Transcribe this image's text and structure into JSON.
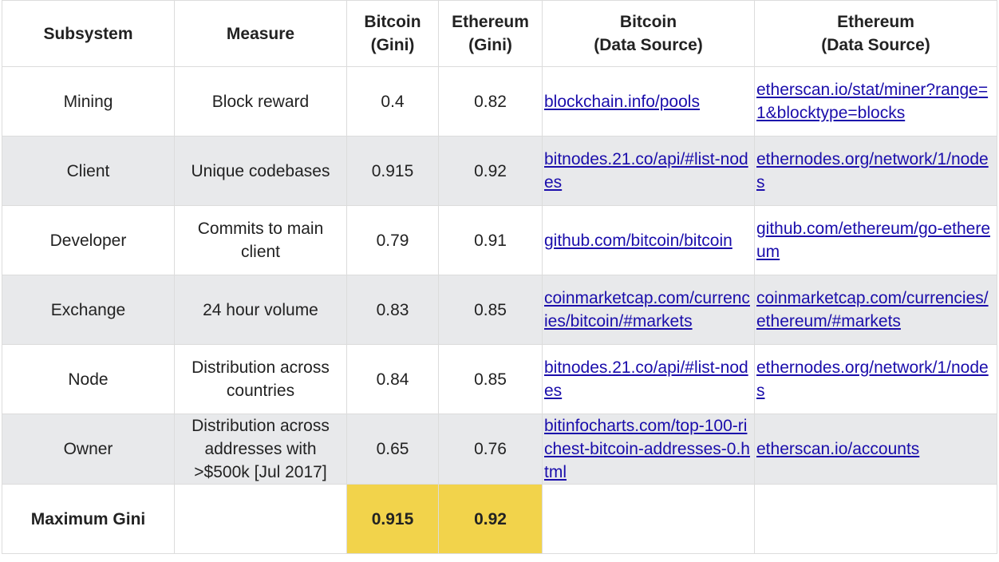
{
  "headers": {
    "subsystem": "Subsystem",
    "measure": "Measure",
    "btc_gini_1": "Bitcoin",
    "btc_gini_2": "(Gini)",
    "eth_gini_1": "Ethereum",
    "eth_gini_2": "(Gini)",
    "btc_src_1": "Bitcoin",
    "btc_src_2": "(Data Source)",
    "eth_src_1": "Ethereum",
    "eth_src_2": "(Data Source)"
  },
  "rows": [
    {
      "subsystem": "Mining",
      "measure": "Block reward",
      "btc": "0.4",
      "eth": "0.82",
      "btc_src": "blockchain.info/pools",
      "eth_src": "etherscan.io/stat/miner?range=1&blocktype=blocks"
    },
    {
      "subsystem": "Client",
      "measure": "Unique codebases",
      "btc": "0.915",
      "eth": "0.92",
      "btc_src": "bitnodes.21.co/api/#list-nodes",
      "eth_src": "ethernodes.org/network/1/nodes"
    },
    {
      "subsystem": "Developer",
      "measure": "Commits to main client",
      "btc": "0.79",
      "eth": "0.91",
      "btc_src": "github.com/bitcoin/bitcoin",
      "eth_src": "github.com/ethereum/go-ethereum"
    },
    {
      "subsystem": "Exchange",
      "measure": "24 hour volume",
      "btc": "0.83",
      "eth": "0.85",
      "btc_src": "coinmarketcap.com/currencies/bitcoin/#markets",
      "eth_src": "coinmarketcap.com/currencies/ethereum/#markets"
    },
    {
      "subsystem": "Node",
      "measure": "Distribution across countries",
      "btc": "0.84",
      "eth": "0.85",
      "btc_src": "bitnodes.21.co/api/#list-nodes",
      "eth_src": "ethernodes.org/network/1/nodes"
    },
    {
      "subsystem": "Owner",
      "measure": "Distribution across addresses with >$500k [Jul 2017]",
      "btc": "0.65",
      "eth": "0.76",
      "btc_src": "bitinfocharts.com/top-100-richest-bitcoin-addresses-0.html",
      "eth_src": "etherscan.io/accounts"
    }
  ],
  "total": {
    "label": "Maximum Gini",
    "btc": "0.915",
    "eth": "0.92"
  },
  "colors": {
    "highlight": "#f2d34b",
    "shaded_row": "#e8e9eb",
    "link": "#1a0dab"
  }
}
